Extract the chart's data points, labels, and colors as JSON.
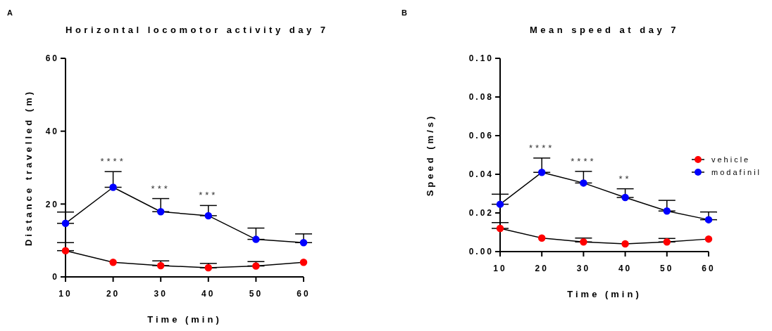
{
  "chart_data": [
    {
      "type": "line",
      "title": "Horizontal locomotor activity day 7",
      "xlabel": "Time (min)",
      "ylabel": "Distance travelled (m)",
      "categories": [
        "10",
        "20",
        "30",
        "40",
        "50",
        "60"
      ],
      "series": [
        {
          "color": "#ff0000",
          "values": [
            7.2,
            4.0,
            3.1,
            2.5,
            3.0,
            4.0
          ],
          "errors": [
            [
              7.2,
              9.4
            ],
            null,
            [
              3.1,
              4.4
            ],
            [
              2.5,
              3.7
            ],
            [
              3.0,
              4.2
            ],
            null
          ]
        },
        {
          "color": "#0000ff",
          "values": [
            14.7,
            24.6,
            17.9,
            16.8,
            10.3,
            9.4
          ],
          "errors": [
            [
              14.7,
              17.8
            ],
            [
              24.6,
              28.9
            ],
            [
              17.9,
              21.5
            ],
            [
              16.8,
              19.6
            ],
            [
              10.3,
              13.4
            ],
            [
              9.4,
              11.8
            ]
          ]
        }
      ],
      "ylim": [
        0,
        60
      ],
      "yticks": [
        0,
        20,
        40,
        60
      ],
      "grid": false,
      "legend": false,
      "marker": "circle",
      "line_style": "solid",
      "annotations": [
        "A",
        {
          "text": "****",
          "x": "20",
          "y": 24.6
        },
        {
          "text": "***",
          "x": "30",
          "y": 17.9
        },
        {
          "text": "***",
          "x": "40",
          "y": 16.8
        }
      ]
    },
    {
      "type": "line",
      "title": "Mean speed at day 7",
      "xlabel": "Time (min)",
      "ylabel": "Speed (m/s)",
      "categories": [
        "10",
        "20",
        "30",
        "40",
        "50",
        "60"
      ],
      "series": [
        {
          "name": "vehicle",
          "color": "#ff0000",
          "values": [
            0.012,
            0.007,
            0.005,
            0.004,
            0.005,
            0.0065
          ],
          "errors": [
            [
              0.012,
              0.015
            ],
            null,
            [
              0.005,
              0.007
            ],
            null,
            [
              0.005,
              0.0068
            ],
            null
          ]
        },
        {
          "name": "modafinil",
          "color": "#0000ff",
          "values": [
            0.0245,
            0.041,
            0.0355,
            0.028,
            0.021,
            0.0165
          ],
          "errors": [
            [
              0.0245,
              0.0297
            ],
            [
              0.041,
              0.0484
            ],
            [
              0.0355,
              0.0415
            ],
            [
              0.028,
              0.0325
            ],
            [
              0.021,
              0.0265
            ],
            [
              0.0165,
              0.0205
            ]
          ]
        }
      ],
      "ylim": [
        0,
        0.1
      ],
      "yticks": [
        {
          "value": 0,
          "label": "0.00"
        },
        {
          "value": 0.02,
          "label": "0.02"
        },
        {
          "value": 0.04,
          "label": "0.04"
        },
        {
          "value": 0.06,
          "label": "0.06"
        },
        {
          "value": 0.08,
          "label": "0.08"
        },
        {
          "value": 0.1,
          "label": "0.10"
        }
      ],
      "grid": false,
      "legend": "right",
      "marker": "circle",
      "line_style": "solid",
      "annotations": [
        "B",
        {
          "text": "****",
          "x": "20",
          "y": 0.041
        },
        {
          "text": "****",
          "x": "30",
          "y": 0.0355
        },
        {
          "text": "**",
          "x": "40",
          "y": 0.028
        }
      ]
    }
  ]
}
